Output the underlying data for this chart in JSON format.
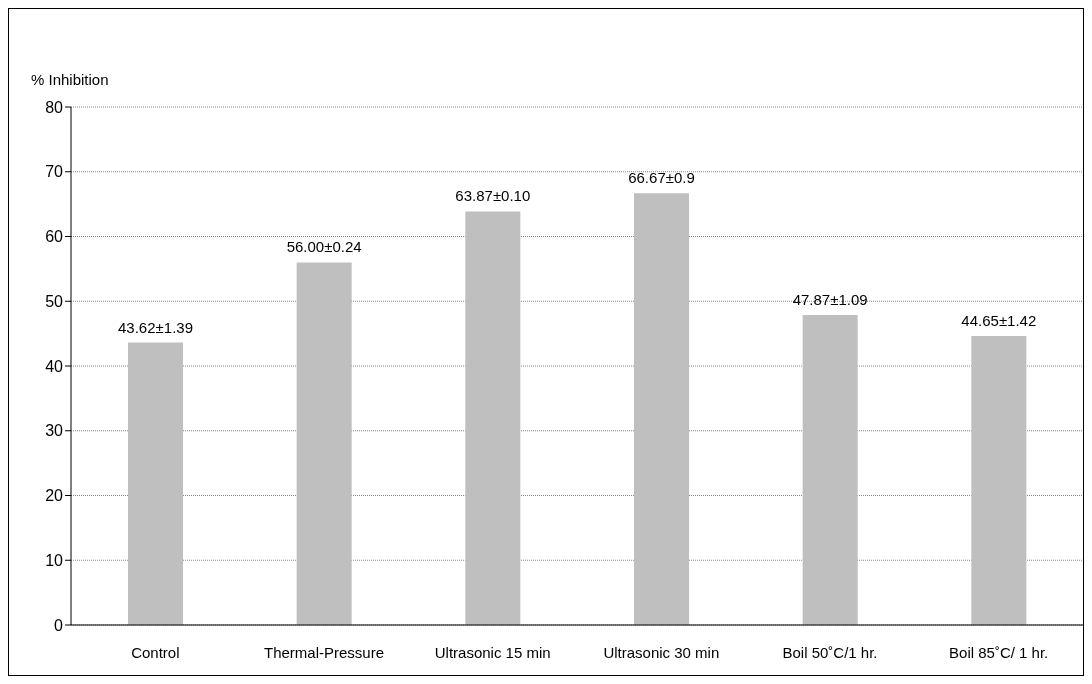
{
  "chart_data": {
    "type": "bar",
    "ylabel": "% Inhibition",
    "categories": [
      "Control",
      "Thermal-Pressure",
      "Ultrasonic 15 min",
      "Ultrasonic 30 min",
      "Boil 50˚C/1 hr.",
      "Boil 85˚C/ 1 hr."
    ],
    "values": [
      43.62,
      56.0,
      63.87,
      66.67,
      47.87,
      44.65
    ],
    "value_labels": [
      "43.62±1.39",
      "56.00±0.24",
      "63.87±0.10",
      "66.67±0.9",
      "47.87±1.09",
      "44.65±1.42"
    ],
    "color": "#bfbfbf",
    "ylim": [
      0,
      80
    ],
    "yticks": [
      0,
      10,
      20,
      30,
      40,
      50,
      60,
      70,
      80
    ],
    "grid": "y",
    "legend": false
  }
}
